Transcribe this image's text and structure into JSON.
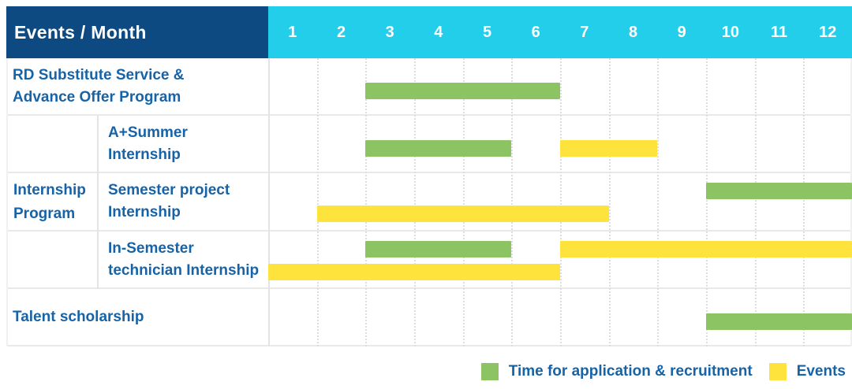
{
  "header": {
    "label_col": "Events / Month",
    "months": [
      "1",
      "2",
      "3",
      "4",
      "5",
      "6",
      "7",
      "8",
      "9",
      "10",
      "11",
      "12"
    ]
  },
  "colors": {
    "header_bg": "#0D4A81",
    "months_bg": "#23CEEB",
    "application_green": "#8CC363",
    "event_yellow": "#FFE33D",
    "label_text": "#1763A7",
    "header_text": "#FFFFFF"
  },
  "chart_data": {
    "type": "gantt",
    "x_unit": "month",
    "x_range": [
      1,
      12
    ],
    "group_label": "Internship\nProgram",
    "rows": [
      {
        "group": "",
        "label": "RD Substitute Service &\nAdvance Offer Program",
        "segments": [
          {
            "kind": "application",
            "start": 3,
            "end": 6,
            "lane": "mid"
          }
        ]
      },
      {
        "group": "Internship Program",
        "label": "A+Summer\nInternship",
        "segments": [
          {
            "kind": "application",
            "start": 3,
            "end": 5,
            "lane": "mid"
          },
          {
            "kind": "event",
            "start": 7,
            "end": 8,
            "lane": "mid"
          }
        ]
      },
      {
        "group": "Internship Program",
        "label": "Semester project\nInternship",
        "segments": [
          {
            "kind": "application",
            "start": 10,
            "end": 12,
            "lane": "upper"
          },
          {
            "kind": "event",
            "start": 2,
            "end": 7,
            "lane": "lower"
          }
        ]
      },
      {
        "group": "Internship Program",
        "label": "In-Semester\ntechnician Internship",
        "segments": [
          {
            "kind": "application",
            "start": 3,
            "end": 5,
            "lane": "upper"
          },
          {
            "kind": "event",
            "start": 7,
            "end": 12,
            "lane": "upper"
          },
          {
            "kind": "event",
            "start": 1,
            "end": 6,
            "lane": "lower"
          }
        ]
      },
      {
        "group": "",
        "label": "Talent scholarship",
        "segments": [
          {
            "kind": "application",
            "start": 10,
            "end": 12,
            "lane": "mid"
          }
        ]
      }
    ],
    "legend": [
      {
        "kind": "application",
        "label": "Time for application & recruitment"
      },
      {
        "kind": "event",
        "label": "Events"
      }
    ]
  }
}
